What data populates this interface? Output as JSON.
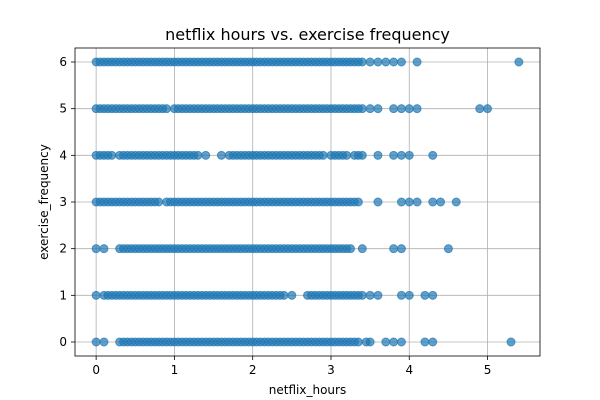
{
  "chart_data": {
    "type": "scatter",
    "title": "netflix hours vs. exercise frequency",
    "xlabel": "netflix_hours",
    "ylabel": "exercise_frequency",
    "xlim": [
      -0.27,
      5.67
    ],
    "ylim": [
      -0.3,
      6.3
    ],
    "xticks": [
      0,
      1,
      2,
      3,
      4,
      5
    ],
    "yticks": [
      0,
      1,
      2,
      3,
      4,
      5,
      6
    ],
    "grid": true,
    "legend": "none",
    "point_color": "#1f77b4",
    "point_opacity": 0.7,
    "series": [
      {
        "y": 6,
        "x": [
          0.0,
          0.05,
          0.1,
          0.15,
          0.2,
          0.25,
          0.3,
          0.35,
          0.4,
          0.45,
          0.5,
          0.55,
          0.6,
          0.65,
          0.7,
          0.75,
          0.8,
          0.85,
          0.9,
          0.95,
          1.0,
          1.05,
          1.1,
          1.15,
          1.2,
          1.25,
          1.3,
          1.35,
          1.4,
          1.45,
          1.5,
          1.55,
          1.6,
          1.65,
          1.7,
          1.75,
          1.8,
          1.85,
          1.9,
          1.95,
          2.0,
          2.05,
          2.1,
          2.15,
          2.2,
          2.25,
          2.3,
          2.35,
          2.4,
          2.45,
          2.5,
          2.55,
          2.6,
          2.65,
          2.7,
          2.75,
          2.8,
          2.85,
          2.9,
          2.95,
          3.0,
          3.05,
          3.1,
          3.15,
          3.2,
          3.25,
          3.3,
          3.35,
          3.4,
          3.5,
          3.6,
          3.7,
          3.8,
          3.9,
          4.1,
          5.4
        ]
      },
      {
        "y": 5,
        "x": [
          0.0,
          0.05,
          0.1,
          0.15,
          0.2,
          0.25,
          0.3,
          0.35,
          0.4,
          0.45,
          0.5,
          0.55,
          0.6,
          0.65,
          0.7,
          0.75,
          0.8,
          0.85,
          0.9,
          1.0,
          1.05,
          1.1,
          1.15,
          1.2,
          1.25,
          1.3,
          1.35,
          1.4,
          1.45,
          1.5,
          1.55,
          1.6,
          1.65,
          1.7,
          1.75,
          1.8,
          1.85,
          1.9,
          1.95,
          2.0,
          2.05,
          2.1,
          2.15,
          2.2,
          2.25,
          2.3,
          2.35,
          2.4,
          2.45,
          2.5,
          2.55,
          2.6,
          2.65,
          2.7,
          2.75,
          2.8,
          2.85,
          2.9,
          2.95,
          3.0,
          3.05,
          3.1,
          3.15,
          3.2,
          3.25,
          3.3,
          3.35,
          3.4,
          3.5,
          3.6,
          3.8,
          3.9,
          4.0,
          4.1,
          4.9,
          5.0
        ]
      },
      {
        "y": 4,
        "x": [
          0.0,
          0.05,
          0.1,
          0.15,
          0.2,
          0.3,
          0.35,
          0.4,
          0.45,
          0.5,
          0.55,
          0.6,
          0.65,
          0.7,
          0.75,
          0.8,
          0.85,
          0.9,
          0.95,
          1.0,
          1.05,
          1.1,
          1.15,
          1.2,
          1.25,
          1.3,
          1.4,
          1.6,
          1.7,
          1.75,
          1.8,
          1.85,
          1.9,
          1.95,
          2.0,
          2.05,
          2.1,
          2.15,
          2.2,
          2.25,
          2.3,
          2.35,
          2.4,
          2.45,
          2.5,
          2.55,
          2.6,
          2.65,
          2.7,
          2.75,
          2.8,
          2.85,
          2.9,
          3.0,
          3.05,
          3.1,
          3.15,
          3.2,
          3.3,
          3.35,
          3.4,
          3.6,
          3.8,
          3.9,
          4.0,
          4.3
        ]
      },
      {
        "y": 3,
        "x": [
          0.0,
          0.05,
          0.1,
          0.15,
          0.2,
          0.25,
          0.3,
          0.35,
          0.4,
          0.45,
          0.5,
          0.55,
          0.6,
          0.65,
          0.7,
          0.75,
          0.8,
          0.9,
          0.95,
          1.0,
          1.05,
          1.1,
          1.15,
          1.2,
          1.25,
          1.3,
          1.35,
          1.4,
          1.45,
          1.5,
          1.55,
          1.6,
          1.65,
          1.7,
          1.75,
          1.8,
          1.85,
          1.9,
          1.95,
          2.0,
          2.05,
          2.1,
          2.15,
          2.2,
          2.25,
          2.3,
          2.35,
          2.4,
          2.45,
          2.5,
          2.55,
          2.6,
          2.65,
          2.7,
          2.75,
          2.8,
          2.85,
          2.9,
          2.95,
          3.0,
          3.05,
          3.1,
          3.15,
          3.2,
          3.25,
          3.3,
          3.35,
          3.6,
          3.9,
          4.0,
          4.1,
          4.3,
          4.4,
          4.6
        ]
      },
      {
        "y": 2,
        "x": [
          0.0,
          0.1,
          0.3,
          0.35,
          0.4,
          0.45,
          0.5,
          0.55,
          0.6,
          0.65,
          0.7,
          0.75,
          0.8,
          0.85,
          0.9,
          0.95,
          1.0,
          1.05,
          1.1,
          1.15,
          1.2,
          1.25,
          1.3,
          1.35,
          1.4,
          1.45,
          1.5,
          1.55,
          1.6,
          1.65,
          1.7,
          1.75,
          1.8,
          1.85,
          1.9,
          1.95,
          2.0,
          2.05,
          2.1,
          2.15,
          2.2,
          2.25,
          2.3,
          2.35,
          2.4,
          2.45,
          2.5,
          2.55,
          2.6,
          2.65,
          2.7,
          2.75,
          2.8,
          2.85,
          2.9,
          2.95,
          3.0,
          3.05,
          3.1,
          3.15,
          3.2,
          3.25,
          3.4,
          3.8,
          3.9,
          4.5
        ]
      },
      {
        "y": 1,
        "x": [
          0.0,
          0.1,
          0.15,
          0.2,
          0.25,
          0.3,
          0.35,
          0.4,
          0.45,
          0.5,
          0.55,
          0.6,
          0.65,
          0.7,
          0.75,
          0.8,
          0.85,
          0.9,
          0.95,
          1.0,
          1.05,
          1.1,
          1.15,
          1.2,
          1.25,
          1.3,
          1.35,
          1.4,
          1.45,
          1.5,
          1.55,
          1.6,
          1.65,
          1.7,
          1.75,
          1.8,
          1.85,
          1.9,
          1.95,
          2.0,
          2.05,
          2.1,
          2.15,
          2.2,
          2.25,
          2.3,
          2.35,
          2.4,
          2.5,
          2.7,
          2.75,
          2.8,
          2.85,
          2.9,
          2.95,
          3.0,
          3.05,
          3.1,
          3.15,
          3.2,
          3.25,
          3.3,
          3.35,
          3.4,
          3.5,
          3.6,
          3.9,
          4.0,
          4.2,
          4.3
        ]
      },
      {
        "y": 0,
        "x": [
          0.0,
          0.1,
          0.3,
          0.35,
          0.4,
          0.45,
          0.5,
          0.55,
          0.6,
          0.65,
          0.7,
          0.75,
          0.8,
          0.85,
          0.9,
          0.95,
          1.0,
          1.05,
          1.1,
          1.15,
          1.2,
          1.25,
          1.3,
          1.35,
          1.4,
          1.45,
          1.5,
          1.55,
          1.6,
          1.65,
          1.7,
          1.75,
          1.8,
          1.85,
          1.9,
          1.95,
          2.0,
          2.05,
          2.1,
          2.15,
          2.2,
          2.25,
          2.3,
          2.35,
          2.4,
          2.45,
          2.5,
          2.55,
          2.6,
          2.65,
          2.7,
          2.75,
          2.8,
          2.85,
          2.9,
          2.95,
          3.0,
          3.05,
          3.1,
          3.15,
          3.2,
          3.25,
          3.3,
          3.35,
          3.45,
          3.5,
          3.7,
          3.8,
          3.9,
          4.2,
          4.3,
          5.3
        ]
      }
    ]
  }
}
